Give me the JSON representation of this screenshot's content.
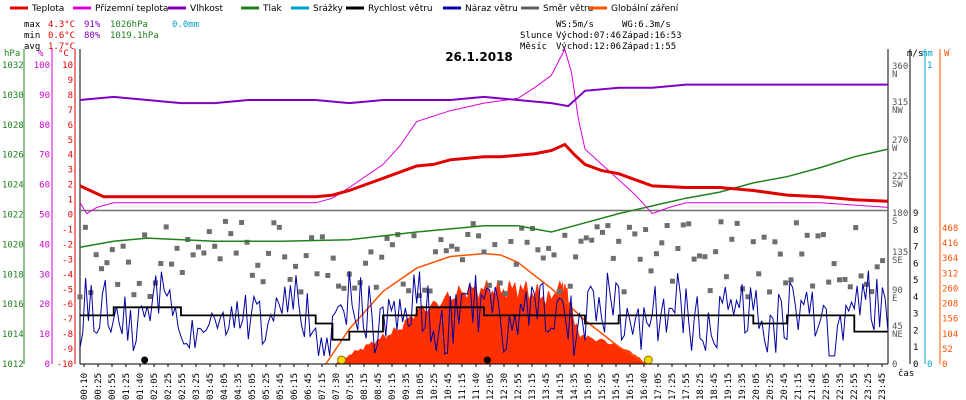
{
  "chart_data": {
    "type": "line",
    "title": "26.1.2018",
    "xlabel": "čas",
    "legend": [
      {
        "name": "Teplota",
        "color": "#e00000"
      },
      {
        "name": "Přízemní teplota",
        "color": "#d800d8"
      },
      {
        "name": "Vlhkost",
        "color": "#8000c0"
      },
      {
        "name": "Tlak",
        "color": "#208020"
      },
      {
        "name": "Srážky",
        "color": "#00a0c8"
      },
      {
        "name": "Rychlost větru",
        "color": "#000000"
      },
      {
        "name": "Náraz větru",
        "color": "#0000a0"
      },
      {
        "name": "Směr větru",
        "color": "#606060"
      },
      {
        "name": "Globální záření",
        "color": "#ff5000"
      }
    ],
    "stats": {
      "max_label": "max",
      "max_t": "4.3°C",
      "max_h": "91%",
      "max_p": "1026hPa",
      "rain": "0.0mm",
      "min_label": "min",
      "min_t": "0.6°C",
      "min_h": "80%",
      "min_p": "1019.1hPa",
      "avg_label": "avg",
      "avg_t": "1.7°C"
    },
    "info": {
      "ws": "WS:5m/s",
      "wg": "WG:6.3m/s",
      "sun_label": "Slunce",
      "sun_rise": "Východ:07:46",
      "sun_set": "Západ:16:53",
      "moon_label": "Měsíc",
      "moon_rise": "Východ:12:06",
      "moon_set": "Západ:1:55"
    },
    "axes": {
      "hpa": {
        "label": "hPa",
        "ticks": [
          "1032",
          "1030",
          "1028",
          "1026",
          "1024",
          "1022",
          "1020",
          "1018",
          "1016",
          "1014",
          "1012"
        ]
      },
      "pct": {
        "label": "%",
        "ticks": [
          "100",
          "90",
          "80",
          "70",
          "60",
          "50",
          "40",
          "30",
          "20",
          "10",
          "0"
        ]
      },
      "temp": {
        "label": "°C",
        "ticks": [
          "10",
          "9",
          "8",
          "7",
          "6",
          "5",
          "4",
          "3",
          "2",
          "1",
          "0",
          "-1",
          "-2",
          "-3",
          "-4",
          "-5",
          "-6",
          "-7",
          "-8",
          "-9",
          "-10"
        ]
      },
      "ms": {
        "label": "m/s",
        "ticks": [
          "9",
          "8",
          "7",
          "6",
          "5",
          "4",
          "3",
          "2",
          "1",
          "0"
        ]
      },
      "mm": {
        "label": "mm",
        "ticks": [
          "1",
          "0"
        ]
      },
      "wm": {
        "label": "W",
        "ticks": [
          "468",
          "416",
          "364",
          "312",
          "260",
          "208",
          "156",
          "104",
          "52",
          "0"
        ]
      },
      "dir": {
        "ticks": [
          "360",
          "N",
          "315",
          "NW",
          "270",
          "W",
          "225",
          "SW",
          "180",
          "S",
          "135",
          "SE",
          "90",
          "E",
          "45",
          "NE",
          "0"
        ]
      }
    },
    "x_ticks": [
      "00:10",
      "00:25",
      "00:55",
      "01:25",
      "01:40",
      "02:05",
      "02:25",
      "02:55",
      "03:25",
      "03:45",
      "04:05",
      "04:35",
      "05:05",
      "05:25",
      "05:45",
      "06:15",
      "06:45",
      "07:15",
      "07:30",
      "07:55",
      "08:15",
      "08:45",
      "09:15",
      "09:35",
      "10:05",
      "10:25",
      "10:45",
      "11:15",
      "11:40",
      "12:05",
      "12:30",
      "12:55",
      "13:15",
      "13:45",
      "14:15",
      "14:35",
      "15:05",
      "15:25",
      "15:45",
      "16:15",
      "16:40",
      "17:05",
      "17:25",
      "17:55",
      "18:25",
      "18:45",
      "19:15",
      "19:35",
      "20:05",
      "20:25",
      "20:45",
      "21:15",
      "21:45",
      "22:05",
      "22:35",
      "22:55",
      "23:25",
      "23:45"
    ],
    "temperature": {
      "x_hours": [
        0,
        0.3,
        0.7,
        1.5,
        3,
        5,
        6,
        7,
        7.5,
        8,
        9,
        10,
        10.5,
        11,
        11.5,
        12,
        12.5,
        13,
        13.5,
        14,
        14.4,
        14.7,
        15,
        15.5,
        16,
        16.5,
        17,
        18,
        19,
        20,
        21,
        22,
        23,
        24
      ],
      "y": [
        1.6,
        1.3,
        0.9,
        0.9,
        0.9,
        0.9,
        0.9,
        0.9,
        1.0,
        1.3,
        2.1,
        2.9,
        3.0,
        3.3,
        3.4,
        3.5,
        3.5,
        3.6,
        3.7,
        3.9,
        4.3,
        3.6,
        3.0,
        2.6,
        2.4,
        2.0,
        1.6,
        1.5,
        1.5,
        1.3,
        1.0,
        0.9,
        0.7,
        0.6
      ]
    },
    "humidity": {
      "x_hours": [
        0,
        1,
        2,
        3,
        4,
        5,
        6,
        7,
        8,
        9,
        10,
        11,
        12,
        13,
        14,
        14.5,
        15,
        16,
        17,
        18,
        19,
        20,
        21,
        22,
        23,
        24
      ],
      "y": [
        86,
        87,
        86,
        85,
        85,
        86,
        86,
        86,
        85,
        86,
        86,
        86,
        87,
        86,
        85,
        84,
        89,
        90,
        90,
        91,
        91,
        91,
        91,
        91,
        91,
        91
      ]
    },
    "ground_temp": {
      "x_hours": [
        0,
        0.2,
        0.5,
        1,
        2,
        4,
        6,
        7,
        7.5,
        8,
        9,
        9.5,
        10,
        11,
        12,
        13,
        13.5,
        14,
        14.4,
        14.6,
        14.8,
        15,
        16,
        16.5,
        17,
        17.5,
        18,
        19,
        20,
        22,
        24
      ],
      "y": [
        0.5,
        -0.2,
        0.2,
        0.5,
        0.5,
        0.5,
        0.5,
        0.5,
        0.8,
        1.5,
        3.0,
        4.2,
        5.8,
        6.5,
        7.0,
        7.3,
        8.0,
        8.8,
        10.5,
        9.0,
        6.0,
        4.0,
        2.0,
        1.0,
        -0.2,
        0.2,
        0.5,
        0.5,
        0.5,
        0.5,
        0.2
      ]
    },
    "pressure": {
      "x_hours": [
        0,
        1,
        2,
        4,
        6,
        8,
        10,
        12,
        13,
        14,
        15,
        16,
        17,
        18,
        19,
        20,
        21,
        22,
        23,
        24
      ],
      "y": [
        1019.6,
        1020.0,
        1020.2,
        1020.0,
        1020.0,
        1020.1,
        1020.6,
        1021.0,
        1021.0,
        1020.6,
        1021.2,
        1021.8,
        1022.3,
        1022.8,
        1023.2,
        1023.8,
        1024.2,
        1024.8,
        1025.5,
        1026.0
      ]
    },
    "radiation": {
      "x_hours": [
        7.6,
        8,
        8.5,
        9,
        9.5,
        10,
        10.5,
        11,
        11.5,
        12,
        12.5,
        13,
        13.5,
        14,
        14.3,
        14.5,
        14.8,
        15,
        15.5,
        16,
        16.5,
        16.8
      ],
      "y": [
        0,
        30,
        60,
        90,
        120,
        180,
        200,
        230,
        250,
        255,
        250,
        260,
        240,
        220,
        280,
        230,
        100,
        90,
        80,
        60,
        30,
        0
      ]
    },
    "clear_sky_radiation": {
      "x_hours": [
        7.3,
        8,
        9,
        10,
        11,
        12,
        12.5,
        13,
        14,
        15,
        16,
        16.8
      ],
      "y": [
        0,
        120,
        250,
        330,
        370,
        380,
        375,
        350,
        260,
        150,
        60,
        0
      ]
    },
    "wind_speed": {
      "x_hours": [
        0,
        1,
        2,
        3,
        4,
        5,
        6,
        7,
        7.5,
        8,
        9,
        10,
        11,
        12,
        13,
        14,
        15,
        16,
        17,
        18,
        19,
        20,
        21,
        22,
        23,
        24
      ],
      "y": [
        3.0,
        3.5,
        3.5,
        3.0,
        3.0,
        3.0,
        3.0,
        2.5,
        1.5,
        2.0,
        3.0,
        3.5,
        3.5,
        3.0,
        3.0,
        3.0,
        2.5,
        3.0,
        3.0,
        3.0,
        3.0,
        2.5,
        3.0,
        3.0,
        2.0,
        2.0
      ]
    },
    "wind_gust_range": [
      0.5,
      7.5
    ],
    "wind_dir_range_deg": [
      80,
      170
    ]
  }
}
